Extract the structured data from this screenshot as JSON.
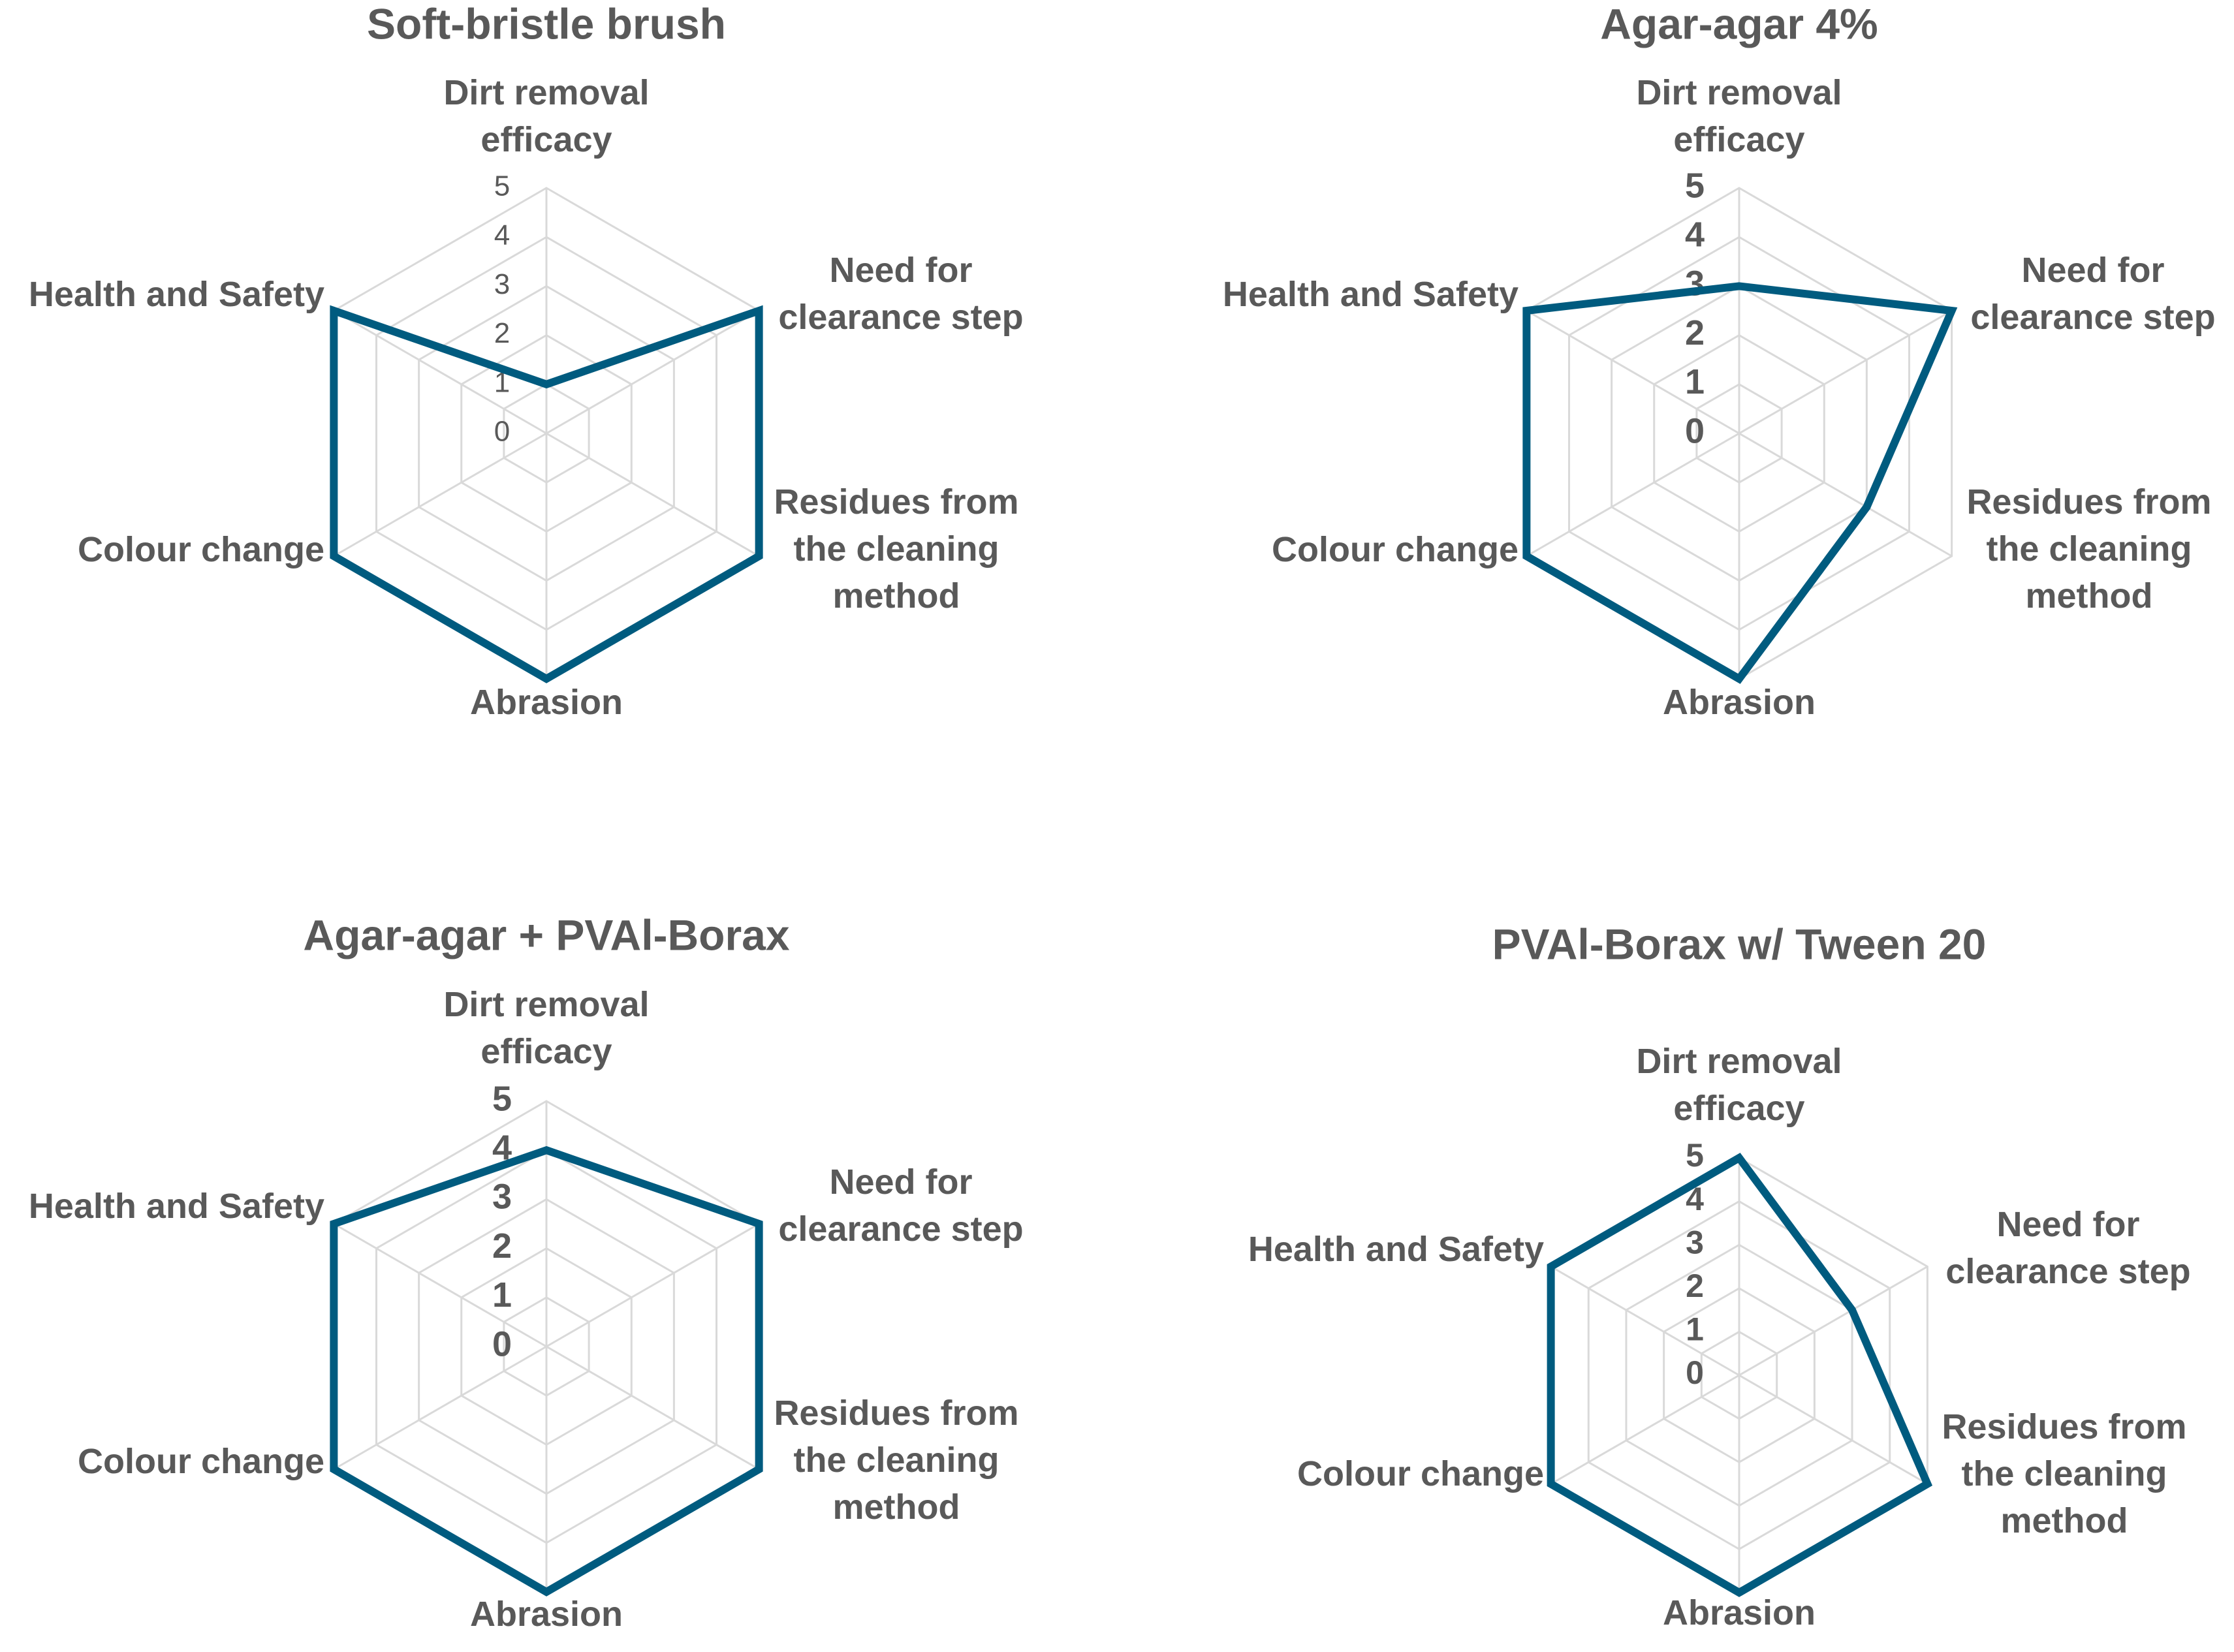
{
  "colors": {
    "series": "#005b7f",
    "grid": "#d9d9d9",
    "text": "#595959"
  },
  "chart_data": [
    {
      "type": "radar",
      "title": "Soft-bristle brush",
      "categories": [
        "Dirt removal efficacy",
        "Need for clearance step",
        "Residues from the cleaning method",
        "Abrasion",
        "Colour change",
        "Health and Safety"
      ],
      "ticks": [
        "0",
        "1",
        "2",
        "3",
        "4",
        "5"
      ],
      "rlim": [
        0,
        5
      ],
      "series": [
        {
          "values": [
            1,
            5,
            5,
            5,
            5,
            5
          ]
        }
      ]
    },
    {
      "type": "radar",
      "title": "Agar-agar 4%",
      "categories": [
        "Dirt removal efficacy",
        "Need for clearance step",
        "Residues from the cleaning method",
        "Abrasion",
        "Colour change",
        "Health and Safety"
      ],
      "ticks": [
        "0",
        "1",
        "2",
        "3",
        "4",
        "5"
      ],
      "rlim": [
        0,
        5
      ],
      "series": [
        {
          "values": [
            3,
            5,
            3,
            5,
            5,
            5
          ]
        }
      ]
    },
    {
      "type": "radar",
      "title": "Agar-agar + PVAl-Borax",
      "categories": [
        "Dirt removal efficacy",
        "Need for clearance step",
        "Residues from the cleaning method",
        "Abrasion",
        "Colour change",
        "Health and Safety"
      ],
      "ticks": [
        "0",
        "1",
        "2",
        "3",
        "4",
        "5"
      ],
      "rlim": [
        0,
        5
      ],
      "series": [
        {
          "values": [
            4,
            5,
            5,
            5,
            5,
            5
          ]
        }
      ]
    },
    {
      "type": "radar",
      "title": "PVAl-Borax  w/ Tween 20",
      "categories": [
        "Dirt removal efficacy",
        "Need for clearance step",
        "Residues from the cleaning method",
        "Abrasion",
        "Colour change",
        "Health and Safety"
      ],
      "ticks": [
        "0",
        "1",
        "2",
        "3",
        "4",
        "5"
      ],
      "rlim": [
        0,
        5
      ],
      "series": [
        {
          "values": [
            5,
            3,
            5,
            5,
            5,
            5
          ]
        }
      ]
    }
  ]
}
